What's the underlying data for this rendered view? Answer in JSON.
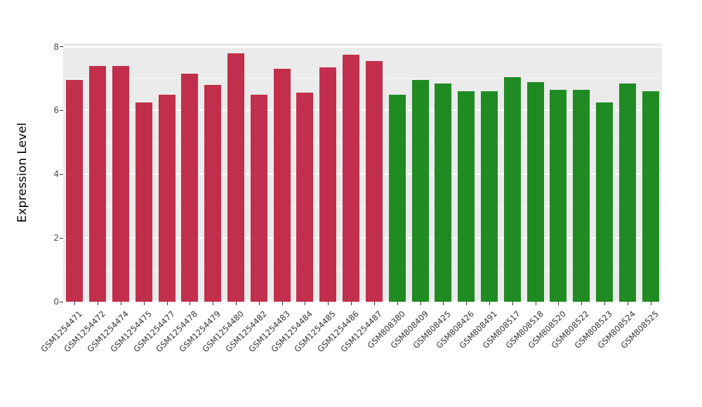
{
  "chart_data": {
    "type": "bar",
    "title": "",
    "xlabel": "",
    "ylabel": "Expression Level",
    "ylim": [
      0,
      8.1
    ],
    "yticks_major": [
      0,
      2,
      4,
      6,
      8
    ],
    "yticks_minor": [
      1,
      3,
      5,
      7
    ],
    "grid": true,
    "legend_position": "none",
    "panel_background": "#EBEBEB",
    "grid_color": "#FFFFFF",
    "group_colors": {
      "group1": "#C22F4C",
      "group2": "#208B22"
    },
    "categories": [
      "GSM1254471",
      "GSM1254472",
      "GSM1254474",
      "GSM1254475",
      "GSM1254477",
      "GSM1254478",
      "GSM1254479",
      "GSM1254480",
      "GSM1254482",
      "GSM1254483",
      "GSM1254484",
      "GSM1254485",
      "GSM1254486",
      "GSM1254487",
      "GSM808380",
      "GSM808409",
      "GSM808425",
      "GSM808426",
      "GSM808491",
      "GSM808517",
      "GSM808518",
      "GSM808520",
      "GSM808522",
      "GSM808523",
      "GSM808524",
      "GSM808525"
    ],
    "values": [
      6.95,
      7.4,
      7.4,
      6.25,
      6.5,
      7.15,
      6.8,
      7.8,
      6.5,
      7.3,
      6.55,
      7.35,
      7.75,
      7.55,
      6.5,
      6.95,
      6.85,
      6.6,
      6.6,
      7.05,
      6.9,
      6.65,
      6.65,
      6.25,
      6.85,
      6.6
    ],
    "bar_colors": [
      "#C22F4C",
      "#C22F4C",
      "#C22F4C",
      "#C22F4C",
      "#C22F4C",
      "#C22F4C",
      "#C22F4C",
      "#C22F4C",
      "#C22F4C",
      "#C22F4C",
      "#C22F4C",
      "#C22F4C",
      "#C22F4C",
      "#C22F4C",
      "#208B22",
      "#208B22",
      "#208B22",
      "#208B22",
      "#208B22",
      "#208B22",
      "#208B22",
      "#208B22",
      "#208B22",
      "#208B22",
      "#208B22",
      "#208B22"
    ]
  }
}
